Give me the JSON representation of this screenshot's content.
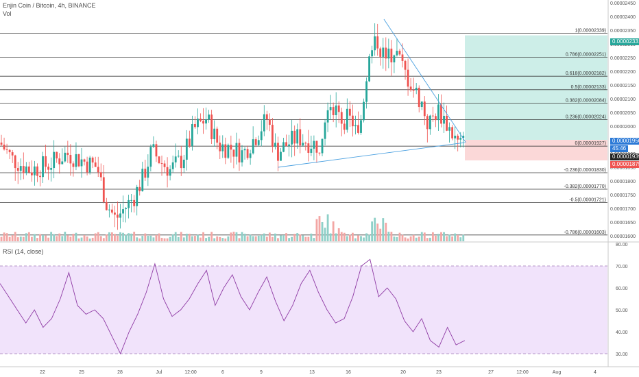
{
  "header": {
    "symbol_line": "Enjin Coin / Bitcoin, 4h, BINANCE",
    "volume_label": "Vol",
    "rsi_label": "RSI (14, close)"
  },
  "colors": {
    "up": "#26a69a",
    "down": "#ef5350",
    "vol_up": "#8fd0c8",
    "vol_down": "#f3a6a4",
    "rsi": "#8e3aa4",
    "rsi_band": "#f1e3fb",
    "trendline": "#4aa0e0",
    "target_zone": "#cdeee8",
    "stop_zone": "#fbd8d8"
  },
  "price_tags": [
    {
      "label": "0.00002331",
      "color": "#26a69a"
    },
    {
      "label": "0.00001950",
      "color": "#2b79d6"
    },
    {
      "label": "45:46",
      "color": "#2b79d6"
    },
    {
      "label": "0.00001939",
      "color": "#222222"
    },
    {
      "label": "0.00001875",
      "color": "#ef5350"
    }
  ],
  "chart_data": {
    "type": "candlestick",
    "price_axis": {
      "min": 1.58e-05,
      "max": 2.46e-05,
      "ticks": [
        "0.00002450",
        "0.00002400",
        "0.00002350",
        "0.00002300",
        "0.00002250",
        "0.00002200",
        "0.00002150",
        "0.00002100",
        "0.00002050",
        "0.00002000",
        "0.00001950",
        "0.00001900",
        "0.00001850",
        "0.00001800",
        "0.00001750",
        "0.00001700",
        "0.00001650",
        "0.00001600"
      ]
    },
    "time_axis": {
      "ticks": [
        "22",
        "25",
        "28",
        "Jul",
        "12:00",
        "6",
        "9",
        "13",
        "16",
        "20",
        "23",
        "27",
        "12:00",
        "Aug",
        "4"
      ]
    },
    "fib_levels": [
      {
        "ratio": "1",
        "price": 2.339e-05,
        "label": "1(0.00002339)"
      },
      {
        "ratio": "0.786",
        "price": 2.251e-05,
        "label": "0.786(0.00002251)"
      },
      {
        "ratio": "0.618",
        "price": 2.182e-05,
        "label": "0.618(0.00002182)"
      },
      {
        "ratio": "0.5",
        "price": 2.133e-05,
        "label": "0.5(0.00002133)"
      },
      {
        "ratio": "0.382",
        "price": 2.084e-05,
        "label": "0.382(0.00002084)"
      },
      {
        "ratio": "0.236",
        "price": 2.024e-05,
        "label": "0.236(0.00002024)"
      },
      {
        "ratio": "0",
        "price": 1.927e-05,
        "label": "0(0.00001927)"
      },
      {
        "ratio": "-0.236",
        "price": 1.83e-05,
        "label": "-0.236(0.00001830)"
      },
      {
        "ratio": "-0.382",
        "price": 1.77e-05,
        "label": "-0.382(0.00001770)"
      },
      {
        "ratio": "-0.5",
        "price": 1.721e-05,
        "label": "-0.5(0.00001721)"
      },
      {
        "ratio": "-0.786",
        "price": 1.603e-05,
        "label": "-0.786(0.00001603)"
      }
    ],
    "price_path": [
      [
        0,
        1.94e-05
      ],
      [
        0.02,
        1.88e-05
      ],
      [
        0.05,
        1.84e-05
      ],
      [
        0.08,
        1.86e-05
      ],
      [
        0.11,
        1.9e-05
      ],
      [
        0.13,
        1.88e-05
      ],
      [
        0.16,
        1.85e-05
      ],
      [
        0.175,
        1.72e-05
      ],
      [
        0.19,
        1.66e-05
      ],
      [
        0.205,
        1.7e-05
      ],
      [
        0.22,
        1.74e-05
      ],
      [
        0.235,
        1.81e-05
      ],
      [
        0.25,
        1.91e-05
      ],
      [
        0.265,
        1.87e-05
      ],
      [
        0.28,
        1.84e-05
      ],
      [
        0.3,
        1.88e-05
      ],
      [
        0.32,
        1.99e-05
      ],
      [
        0.34,
        2.03e-05
      ],
      [
        0.36,
        1.93e-05
      ],
      [
        0.38,
        1.92e-05
      ],
      [
        0.4,
        1.9e-05
      ],
      [
        0.42,
        1.96e-05
      ],
      [
        0.44,
        2.03e-05
      ],
      [
        0.455,
        1.9e-05
      ],
      [
        0.47,
        1.93e-05
      ],
      [
        0.49,
        1.96e-05
      ],
      [
        0.51,
        1.94e-05
      ],
      [
        0.525,
        1.93e-05
      ],
      [
        0.54,
        2.1e-05
      ],
      [
        0.56,
        2.03e-05
      ],
      [
        0.58,
        2.02e-05
      ],
      [
        0.59,
        1.95e-05
      ],
      [
        0.605,
        2.22e-05
      ],
      [
        0.62,
        2.32e-05
      ],
      [
        0.635,
        2.24e-05
      ],
      [
        0.65,
        2.28e-05
      ],
      [
        0.665,
        2.2e-05
      ],
      [
        0.68,
        2.14e-05
      ],
      [
        0.695,
        2.08e-05
      ],
      [
        0.705,
        2e-05
      ],
      [
        0.72,
        2.06e-05
      ],
      [
        0.73,
        2.03e-05
      ],
      [
        0.745,
        1.97e-05
      ],
      [
        0.755,
        1.93e-05
      ],
      [
        0.765,
        1.94e-05
      ]
    ],
    "rsi": {
      "ylim": [
        25,
        80
      ],
      "ticks": [
        "80.00",
        "70.00",
        "60.00",
        "50.00",
        "40.00",
        "30.00"
      ],
      "upper": 70,
      "lower": 30,
      "values": [
        62,
        56,
        50,
        44,
        50,
        42,
        46,
        55,
        67,
        52,
        48,
        50,
        46,
        38,
        30,
        40,
        48,
        58,
        71,
        55,
        47,
        50,
        55,
        62,
        68,
        52,
        60,
        66,
        56,
        50,
        58,
        65,
        54,
        45,
        52,
        62,
        68,
        58,
        50,
        44,
        46,
        56,
        70,
        73,
        56,
        60,
        55,
        45,
        40,
        46,
        36,
        33,
        42,
        34,
        36
      ]
    }
  }
}
